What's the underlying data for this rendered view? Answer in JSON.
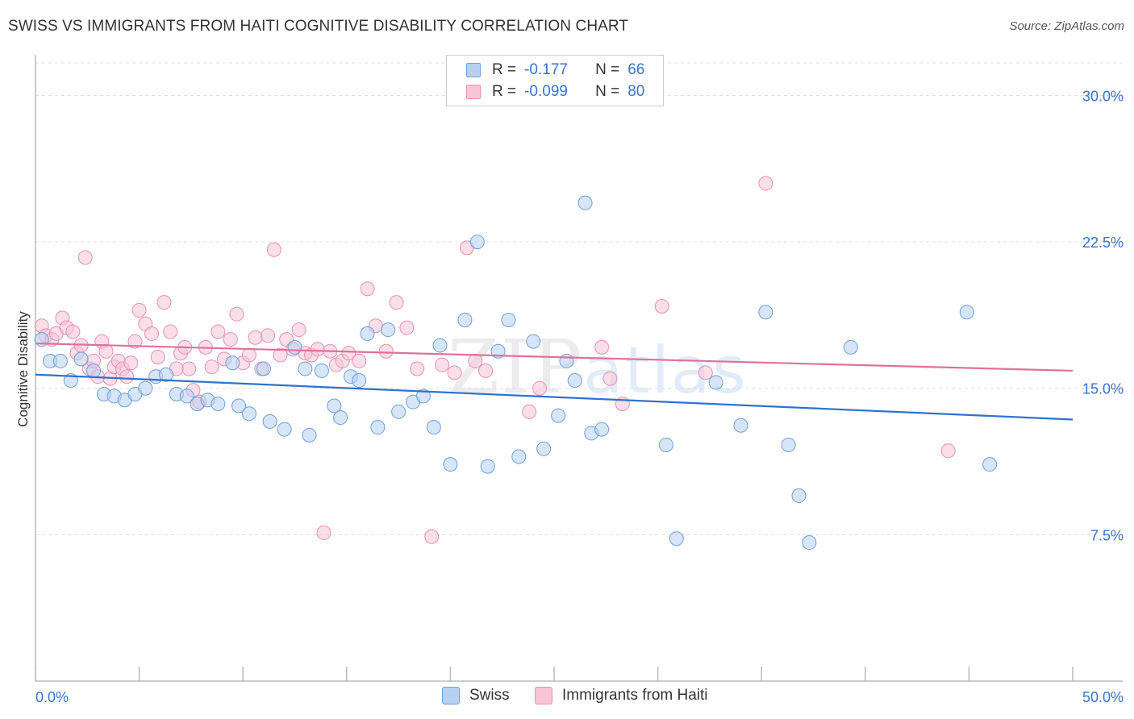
{
  "title": "SWISS VS IMMIGRANTS FROM HAITI COGNITIVE DISABILITY CORRELATION CHART",
  "source": "Source: ZipAtlas.com",
  "watermark": {
    "part1": "ZIP",
    "part2": "atlas"
  },
  "legend": {
    "swiss": {
      "r_label": "R =",
      "r_value": "-0.177",
      "n_label": "N =",
      "n_value": "66"
    },
    "haiti": {
      "r_label": "R =",
      "r_value": "-0.099",
      "n_label": "N =",
      "n_value": "80"
    }
  },
  "colors": {
    "swiss_fill": "#b7d0f2",
    "swiss_stroke": "#6f9fdc",
    "swiss_line": "#2f72cf",
    "haiti_fill": "#f8c5d6",
    "haiti_stroke": "#e98fb0",
    "haiti_line": "#e0709a",
    "tick_label": "#3a73c8",
    "grid": "#dddddd"
  },
  "chart_data": {
    "type": "scatter",
    "title": "SWISS VS IMMIGRANTS FROM HAITI COGNITIVE DISABILITY CORRELATION CHART",
    "xlabel": "",
    "ylabel": "Cognitive Disability",
    "xlim": [
      0,
      50
    ],
    "ylim": [
      0,
      32
    ],
    "x_tick_labels": [
      "0.0%",
      "50.0%"
    ],
    "y_ticks": [
      7.5,
      15.0,
      22.5,
      30.0
    ],
    "y_tick_labels": [
      "7.5%",
      "15.0%",
      "22.5%",
      "30.0%"
    ],
    "grid": "horizontal dashed",
    "legend_position": "top-center",
    "series": [
      {
        "name": "Swiss",
        "trend": {
          "x": [
            0,
            50
          ],
          "y": [
            15.7,
            13.4
          ]
        },
        "points": [
          [
            0.3,
            17.5
          ],
          [
            0.7,
            16.4
          ],
          [
            1.2,
            16.4
          ],
          [
            1.7,
            15.4
          ],
          [
            2.2,
            16.5
          ],
          [
            2.8,
            15.9
          ],
          [
            3.3,
            14.7
          ],
          [
            3.8,
            14.6
          ],
          [
            4.3,
            14.4
          ],
          [
            4.8,
            14.7
          ],
          [
            5.3,
            15.0
          ],
          [
            5.8,
            15.6
          ],
          [
            6.3,
            15.7
          ],
          [
            6.8,
            14.7
          ],
          [
            7.3,
            14.6
          ],
          [
            7.8,
            14.2
          ],
          [
            8.3,
            14.4
          ],
          [
            8.8,
            14.2
          ],
          [
            9.5,
            16.3
          ],
          [
            9.8,
            14.1
          ],
          [
            10.3,
            13.7
          ],
          [
            11.0,
            16.0
          ],
          [
            11.3,
            13.3
          ],
          [
            12.0,
            12.9
          ],
          [
            12.5,
            17.1
          ],
          [
            13.0,
            16.0
          ],
          [
            13.2,
            12.6
          ],
          [
            13.8,
            15.9
          ],
          [
            14.4,
            14.1
          ],
          [
            14.7,
            13.5
          ],
          [
            15.2,
            15.6
          ],
          [
            15.6,
            15.4
          ],
          [
            16.0,
            17.8
          ],
          [
            16.5,
            13.0
          ],
          [
            17.0,
            18.0
          ],
          [
            17.5,
            13.8
          ],
          [
            18.2,
            14.3
          ],
          [
            18.7,
            14.6
          ],
          [
            19.2,
            13.0
          ],
          [
            19.5,
            17.2
          ],
          [
            20.0,
            11.1
          ],
          [
            20.7,
            18.5
          ],
          [
            21.3,
            22.5
          ],
          [
            21.8,
            11.0
          ],
          [
            22.3,
            16.9
          ],
          [
            22.8,
            18.5
          ],
          [
            23.3,
            11.5
          ],
          [
            24.0,
            17.4
          ],
          [
            24.5,
            11.9
          ],
          [
            25.2,
            13.6
          ],
          [
            25.6,
            16.4
          ],
          [
            26.0,
            15.4
          ],
          [
            26.5,
            24.5
          ],
          [
            26.8,
            12.7
          ],
          [
            27.3,
            12.9
          ],
          [
            30.4,
            12.1
          ],
          [
            30.9,
            7.3
          ],
          [
            32.8,
            15.3
          ],
          [
            34.0,
            13.1
          ],
          [
            35.2,
            18.9
          ],
          [
            36.3,
            12.1
          ],
          [
            36.8,
            9.5
          ],
          [
            37.3,
            7.1
          ],
          [
            39.3,
            17.1
          ],
          [
            44.9,
            18.9
          ],
          [
            46.0,
            11.1
          ]
        ]
      },
      {
        "name": "Immigrants from Haiti",
        "trend": {
          "x": [
            0,
            50
          ],
          "y": [
            17.3,
            15.9
          ]
        },
        "points": [
          [
            0.3,
            18.2
          ],
          [
            0.5,
            17.7
          ],
          [
            0.8,
            17.5
          ],
          [
            1.0,
            17.8
          ],
          [
            1.3,
            18.6
          ],
          [
            1.5,
            18.1
          ],
          [
            1.8,
            17.9
          ],
          [
            2.0,
            16.8
          ],
          [
            2.2,
            17.2
          ],
          [
            2.4,
            21.7
          ],
          [
            2.6,
            16.0
          ],
          [
            2.8,
            16.4
          ],
          [
            3.0,
            15.6
          ],
          [
            3.2,
            17.4
          ],
          [
            3.4,
            16.9
          ],
          [
            3.6,
            15.5
          ],
          [
            3.8,
            16.1
          ],
          [
            4.0,
            16.4
          ],
          [
            4.2,
            16.0
          ],
          [
            4.4,
            15.6
          ],
          [
            4.6,
            16.3
          ],
          [
            4.8,
            17.4
          ],
          [
            5.0,
            19.0
          ],
          [
            5.3,
            18.3
          ],
          [
            5.6,
            17.8
          ],
          [
            5.9,
            16.6
          ],
          [
            6.2,
            19.4
          ],
          [
            6.5,
            17.9
          ],
          [
            6.8,
            16.0
          ],
          [
            7.0,
            16.8
          ],
          [
            7.2,
            17.1
          ],
          [
            7.4,
            16.0
          ],
          [
            7.6,
            14.9
          ],
          [
            7.9,
            14.3
          ],
          [
            8.2,
            17.1
          ],
          [
            8.5,
            16.1
          ],
          [
            8.8,
            17.9
          ],
          [
            9.1,
            16.5
          ],
          [
            9.4,
            17.5
          ],
          [
            9.7,
            18.8
          ],
          [
            10.0,
            16.3
          ],
          [
            10.3,
            16.7
          ],
          [
            10.6,
            17.6
          ],
          [
            10.9,
            16.0
          ],
          [
            11.2,
            17.7
          ],
          [
            11.5,
            22.1
          ],
          [
            11.8,
            16.7
          ],
          [
            12.1,
            17.5
          ],
          [
            12.4,
            17.0
          ],
          [
            12.7,
            18.0
          ],
          [
            13.0,
            16.8
          ],
          [
            13.3,
            16.7
          ],
          [
            13.6,
            17.0
          ],
          [
            13.9,
            7.6
          ],
          [
            14.2,
            16.9
          ],
          [
            14.5,
            16.2
          ],
          [
            14.8,
            16.4
          ],
          [
            15.1,
            16.8
          ],
          [
            15.6,
            16.4
          ],
          [
            16.0,
            20.1
          ],
          [
            16.4,
            18.2
          ],
          [
            16.9,
            16.9
          ],
          [
            17.4,
            19.4
          ],
          [
            17.9,
            18.1
          ],
          [
            18.4,
            16.0
          ],
          [
            19.1,
            7.4
          ],
          [
            19.6,
            16.2
          ],
          [
            20.2,
            15.8
          ],
          [
            20.8,
            22.2
          ],
          [
            21.2,
            16.4
          ],
          [
            21.7,
            15.9
          ],
          [
            23.8,
            13.8
          ],
          [
            24.3,
            15.0
          ],
          [
            27.3,
            17.1
          ],
          [
            27.7,
            15.5
          ],
          [
            28.3,
            14.2
          ],
          [
            30.2,
            19.2
          ],
          [
            32.3,
            15.8
          ],
          [
            35.2,
            25.5
          ],
          [
            44.0,
            11.8
          ]
        ]
      }
    ]
  },
  "bottom_legend": {
    "swiss": "Swiss",
    "haiti": "Immigrants from Haiti"
  }
}
